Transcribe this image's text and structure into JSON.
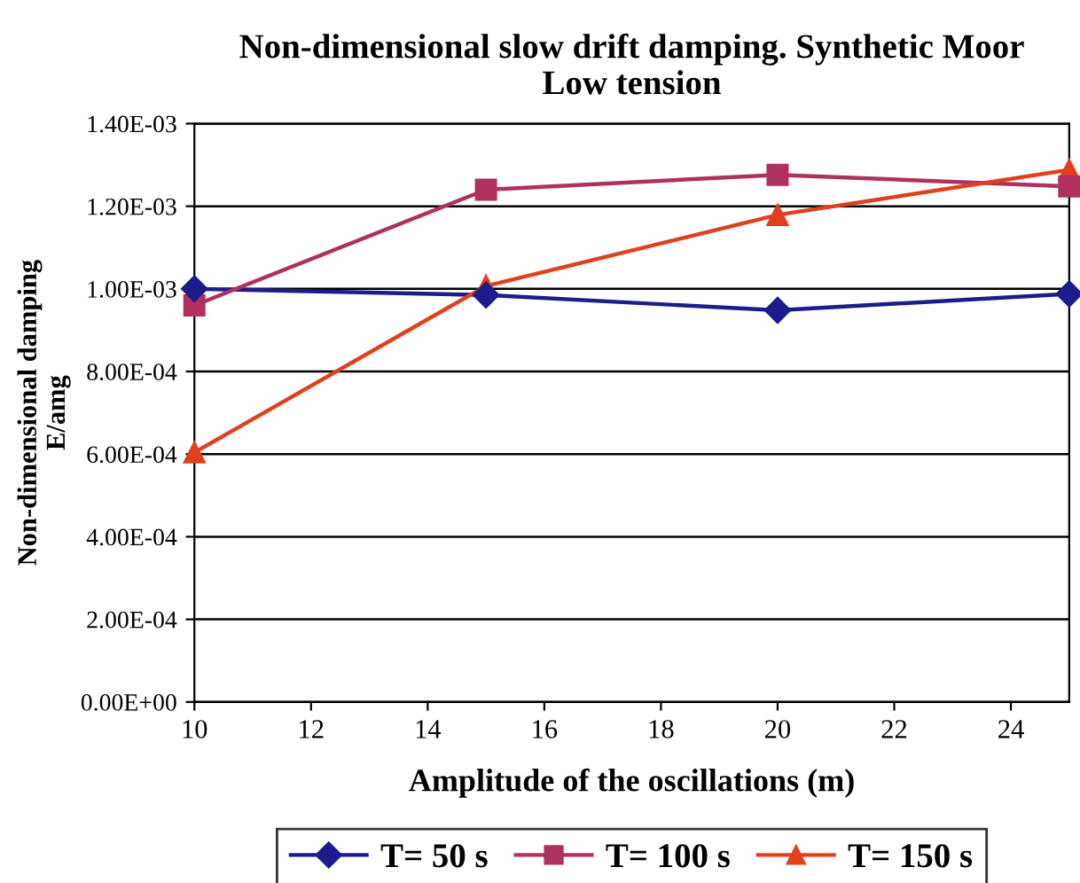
{
  "chart_data": {
    "type": "line",
    "title": "Non-dimensional slow drift damping. Synthetic Moor\nLow tension",
    "xlabel": "Amplitude of the oscillations (m)",
    "ylabel": "Non-dimensional damping\nE/amg",
    "x": [
      10,
      15,
      20,
      25
    ],
    "series": [
      {
        "name": "T= 50 s",
        "color": "#1c1c8c",
        "marker": "diamond",
        "values": [
          0.001,
          0.000985,
          0.000948,
          0.000988
        ]
      },
      {
        "name": "T= 100 s",
        "color": "#b03060",
        "marker": "square",
        "values": [
          0.00096,
          0.00124,
          0.001276,
          0.001248
        ]
      },
      {
        "name": "T= 150 s",
        "color": "#e0401c",
        "marker": "triangle",
        "values": [
          0.000604,
          0.001007,
          0.001179,
          0.001288
        ]
      }
    ],
    "xlim": [
      10,
      25
    ],
    "xticks": [
      10,
      12,
      14,
      16,
      18,
      20,
      22,
      24
    ],
    "ylim": [
      0,
      0.0014
    ],
    "yticks": [
      {
        "value": 0,
        "label": "0.00E+00"
      },
      {
        "value": 0.0002,
        "label": "2.00E-04"
      },
      {
        "value": 0.0004,
        "label": "4.00E-04"
      },
      {
        "value": 0.0006,
        "label": "6.00E-04"
      },
      {
        "value": 0.0008,
        "label": "8.00E-04"
      },
      {
        "value": 0.001,
        "label": "1.00E-03"
      },
      {
        "value": 0.0012,
        "label": "1.20E-03"
      },
      {
        "value": 0.0014,
        "label": "1.40E-03"
      }
    ],
    "grid": "y",
    "legend": "bottom",
    "line_style": "solid"
  }
}
